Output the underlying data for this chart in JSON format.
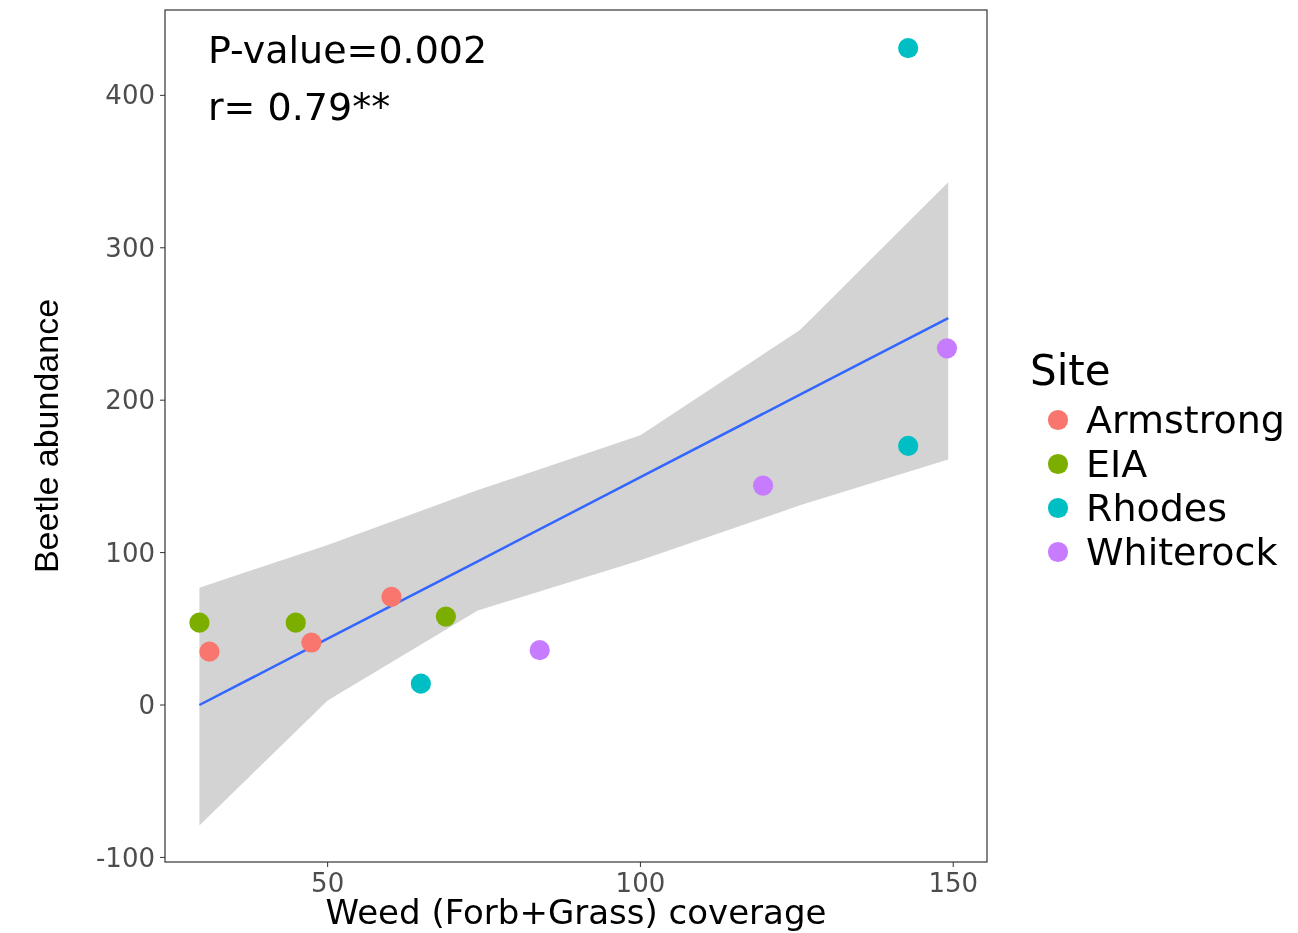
{
  "chart_data": {
    "type": "scatter",
    "xlabel": "Weed (Forb+Grass) coverage",
    "ylabel": "Beetle abundance",
    "legend_title": "Site",
    "legend": "right",
    "marker": "circle",
    "grid": false,
    "xlim": [
      24,
      155.4
    ],
    "xticks": [
      50,
      100,
      150
    ],
    "ylim": [
      -103,
      456
    ],
    "yticks": [
      -100,
      0,
      100,
      200,
      300,
      400
    ],
    "annotations": [
      "P-value=0.002",
      "r= 0.79**"
    ],
    "series": [
      {
        "name": "Armstrong",
        "color": "#f8766d",
        "x": [
          31.1,
          47.4,
          60.2
        ],
        "values": [
          35,
          41,
          71
        ]
      },
      {
        "name": "EIA",
        "color": "#7cae00",
        "x": [
          29.5,
          44.9,
          68.9
        ],
        "values": [
          54,
          54,
          58
        ]
      },
      {
        "name": "Rhodes",
        "color": "#00bfc4",
        "x": [
          64.9,
          142.8,
          142.8
        ],
        "values": [
          14,
          431,
          170
        ]
      },
      {
        "name": "Whiterock",
        "color": "#c77cff",
        "x": [
          83.9,
          119.6,
          149
        ],
        "values": [
          36,
          144,
          234
        ]
      },
      {
        "type": "line",
        "marker": "none",
        "color": "#3366ff",
        "x": [
          29.5,
          50,
          74,
          100,
          125.5,
          149.2
        ],
        "values": [
          0,
          43.5,
          94.3,
          149.5,
          203.6,
          253.8
        ],
        "lower": [
          -79,
          3,
          62,
          95,
          131,
          161
        ],
        "upper": [
          77,
          105,
          141,
          177,
          246,
          343
        ]
      }
    ]
  }
}
